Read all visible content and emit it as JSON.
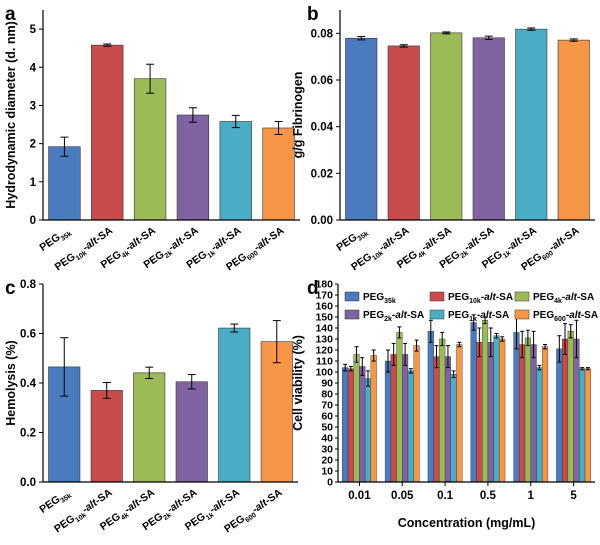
{
  "panel_labels": [
    "a",
    "b",
    "c",
    "d"
  ],
  "colors": {
    "PEG35k": "#4a7bbf",
    "PEG10k": "#c94c4c",
    "PEG4k": "#9bbb59",
    "PEG2k": "#8064a2",
    "PEG1k": "#4bacc6",
    "PEG600": "#f79646"
  },
  "chart_data": [
    {
      "id": "a",
      "type": "bar",
      "ylabel": "Hydrodynamic diameter (d. nm)",
      "ylim": [
        0,
        5.5
      ],
      "yticks": [
        "0",
        "1",
        "2",
        "3",
        "4",
        "5"
      ],
      "categories": [
        {
          "main": "PEG",
          "sub": "35k",
          "tail": ""
        },
        {
          "main": "PEG",
          "sub": "10k",
          "tail": "-alt-SA"
        },
        {
          "main": "PEG",
          "sub": "4k",
          "tail": "-alt-SA"
        },
        {
          "main": "PEG",
          "sub": "2k",
          "tail": "-alt-SA"
        },
        {
          "main": "PEG",
          "sub": "1k",
          "tail": "-alt-SA"
        },
        {
          "main": "PEG",
          "sub": "600",
          "tail": "-alt-SA"
        }
      ],
      "values": [
        1.92,
        4.58,
        3.7,
        2.75,
        2.58,
        2.41
      ],
      "errors": [
        0.25,
        0.03,
        0.38,
        0.19,
        0.16,
        0.17
      ]
    },
    {
      "id": "b",
      "type": "bar",
      "ylabel": "g/g Fibrinogen",
      "ylim": [
        0,
        0.09
      ],
      "yticks": [
        "0.00",
        "0.02",
        "0.04",
        "0.06",
        "0.08"
      ],
      "categories": [
        {
          "main": "PEG",
          "sub": "35k",
          "tail": ""
        },
        {
          "main": "PEG",
          "sub": "10k",
          "tail": "-alt-SA"
        },
        {
          "main": "PEG",
          "sub": "4k",
          "tail": "-alt-SA"
        },
        {
          "main": "PEG",
          "sub": "2k",
          "tail": "-alt-SA"
        },
        {
          "main": "PEG",
          "sub": "1k",
          "tail": "-alt-SA"
        },
        {
          "main": "PEG",
          "sub": "600",
          "tail": "-alt-SA"
        }
      ],
      "values": [
        0.0779,
        0.0746,
        0.0802,
        0.0781,
        0.0818,
        0.0771
      ],
      "errors": [
        0.0007,
        0.0005,
        0.0004,
        0.0007,
        0.0005,
        0.0005
      ]
    },
    {
      "id": "c",
      "type": "bar",
      "ylabel": "Hemolysis (%)",
      "ylim": [
        0,
        0.8
      ],
      "yticks": [
        "0.0",
        "0.2",
        "0.4",
        "0.6",
        "0.8"
      ],
      "categories": [
        {
          "main": "PEG",
          "sub": "35k",
          "tail": ""
        },
        {
          "main": "PEG",
          "sub": "10k",
          "tail": "-alt-SA"
        },
        {
          "main": "PEG",
          "sub": "4k",
          "tail": "-alt-SA"
        },
        {
          "main": "PEG",
          "sub": "2k",
          "tail": "-alt-SA"
        },
        {
          "main": "PEG",
          "sub": "1k",
          "tail": "-alt-SA"
        },
        {
          "main": "PEG",
          "sub": "600",
          "tail": "-alt-SA"
        }
      ],
      "values": [
        0.465,
        0.37,
        0.441,
        0.405,
        0.622,
        0.567
      ],
      "errors": [
        0.118,
        0.032,
        0.023,
        0.029,
        0.016,
        0.085
      ]
    },
    {
      "id": "d",
      "type": "bar",
      "xlabel": "Concentration (mg/mL)",
      "ylabel": "Cell viability (%)",
      "ylim": [
        0,
        180
      ],
      "yticks": [
        "0",
        "10",
        "20",
        "30",
        "40",
        "50",
        "60",
        "70",
        "80",
        "90",
        "100",
        "110",
        "120",
        "130",
        "140",
        "150",
        "160",
        "170",
        "180"
      ],
      "categories": [
        "0.01",
        "0.05",
        "0.1",
        "0.5",
        "1",
        "5"
      ],
      "legend_position": "top",
      "series": [
        {
          "key": "PEG35k",
          "label": {
            "main": "PEG",
            "sub": "35k",
            "tail": ""
          },
          "values": [
            104,
            110,
            137,
            145,
            136,
            121
          ],
          "errors": [
            3,
            10,
            10,
            7,
            15,
            12
          ]
        },
        {
          "key": "PEG10k",
          "label": {
            "main": "PEG",
            "sub": "10k",
            "tail": "-alt-SA"
          },
          "values": [
            103,
            116,
            114,
            127,
            125,
            130
          ],
          "errors": [
            2,
            10,
            10,
            13,
            12,
            14
          ]
        },
        {
          "key": "PEG4k",
          "label": {
            "main": "PEG",
            "sub": "4k",
            "tail": "-alt-SA"
          },
          "values": [
            116,
            136,
            130,
            147,
            131,
            137
          ],
          "errors": [
            7,
            5,
            6,
            3,
            7,
            6
          ]
        },
        {
          "key": "PEG2k",
          "label": {
            "main": "PEG",
            "sub": "2k",
            "tail": "-alt-SA"
          },
          "values": [
            105,
            116,
            114,
            127,
            125,
            130
          ],
          "errors": [
            8,
            10,
            10,
            13,
            12,
            17
          ]
        },
        {
          "key": "PEG1k",
          "label": {
            "main": "PEG",
            "sub": "1k",
            "tail": "-alt-SA"
          },
          "values": [
            94,
            101,
            98,
            133,
            104,
            103
          ],
          "errors": [
            7,
            2,
            3,
            2,
            2,
            1
          ]
        },
        {
          "key": "PEG600",
          "label": {
            "main": "PEG",
            "sub": "600",
            "tail": "-alt-SA"
          },
          "values": [
            115,
            124,
            125,
            130,
            123,
            103
          ],
          "errors": [
            5,
            5,
            2,
            2,
            2,
            1
          ]
        }
      ]
    }
  ]
}
